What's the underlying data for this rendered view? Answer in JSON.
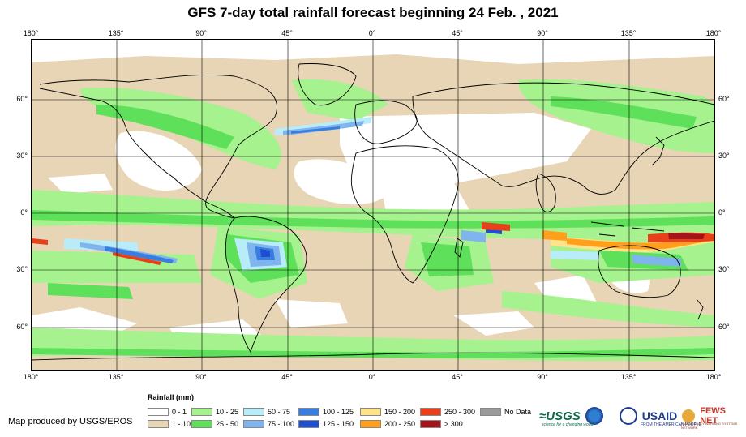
{
  "title": "GFS 7-day total rainfall forecast beginning 24 Feb. , 2021",
  "axes": {
    "top_ticks": [
      "180°",
      "135°",
      "90°",
      "45°",
      "0°",
      "45°",
      "90°",
      "135°",
      "180°"
    ],
    "bottom_ticks": [
      "180°",
      "135°",
      "90°",
      "45°",
      "0°",
      "45°",
      "90°",
      "135°",
      "180°"
    ],
    "left_ticks": [
      "60°",
      "30°",
      "0°",
      "30°",
      "60°"
    ],
    "right_ticks": [
      "60°",
      "30°",
      "0°",
      "30°",
      "60°"
    ]
  },
  "legend": {
    "title": "Rainfall (mm)",
    "items": [
      {
        "label": "0 - 1",
        "color": "#ffffff"
      },
      {
        "label": "1 - 10",
        "color": "#e8d5b5"
      },
      {
        "label": "10 - 25",
        "color": "#a6f28f"
      },
      {
        "label": "25 - 50",
        "color": "#5fe05a"
      },
      {
        "label": "50 - 75",
        "color": "#b8ecf8"
      },
      {
        "label": "75 - 100",
        "color": "#7fb4ee"
      },
      {
        "label": "100 - 125",
        "color": "#3a7de0"
      },
      {
        "label": "125 - 150",
        "color": "#1f4fd0"
      },
      {
        "label": "150 - 200",
        "color": "#ffe38a"
      },
      {
        "label": "200 - 250",
        "color": "#ff9f1c"
      },
      {
        "label": "250 - 300",
        "color": "#e8401a"
      },
      {
        "label": "> 300",
        "color": "#a3151b"
      },
      {
        "label": "No Data",
        "color": "#9a9a9a"
      }
    ]
  },
  "credit": "Map produced by USGS/EROS",
  "logos": {
    "usgs": "≈USGS",
    "usgs_tagline": "science for a changing world",
    "usaid": "USAID",
    "usaid_tagline": "FROM THE AMERICAN PEOPLE",
    "fews": "FEWS NET",
    "fews_tagline": "FAMINE EARLY WARNING SYSTEMS NETWORK"
  }
}
